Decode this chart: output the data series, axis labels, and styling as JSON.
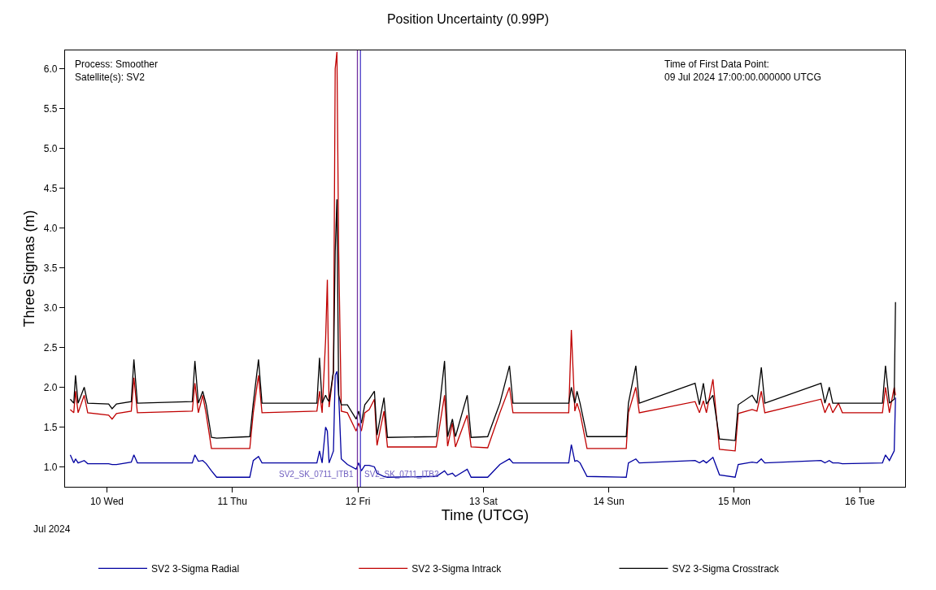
{
  "chart_data": {
    "type": "line",
    "title": "Position Uncertainty (0.99P)",
    "xlabel": "Time (UTCG)",
    "ylabel": "Three Sigmas (m)",
    "annotations": [
      "Process: Smoother",
      "Satellite(s): SV2",
      "Time of First Data Point:",
      "09 Jul 2024 17:00:00.000000 UTCG",
      "Jul 2024"
    ],
    "x": [
      "2024-07-09T17:00",
      "2024-07-09T17:40",
      "2024-07-09T18:00",
      "2024-07-09T18:30",
      "2024-07-09T19:40",
      "2024-07-09T20:20",
      "2024-07-10T00:20",
      "2024-07-10T01:00",
      "2024-07-10T01:50",
      "2024-07-10T04:40",
      "2024-07-10T05:10",
      "2024-07-10T05:50",
      "2024-07-10T16:20",
      "2024-07-10T16:50",
      "2024-07-10T17:30",
      "2024-07-10T18:20",
      "2024-07-10T19:00",
      "2024-07-10T20:00",
      "2024-07-10T21:00",
      "2024-07-11T03:20",
      "2024-07-11T04:00",
      "2024-07-11T05:00",
      "2024-07-11T05:40",
      "2024-07-11T16:10",
      "2024-07-11T16:40",
      "2024-07-11T17:10",
      "2024-07-11T17:50",
      "2024-07-11T18:10",
      "2024-07-11T18:30",
      "2024-07-11T19:20",
      "2024-07-11T19:40",
      "2024-07-11T20:00",
      "2024-07-11T20:20",
      "2024-07-11T20:50",
      "2024-07-11T22:00",
      "2024-07-11T23:40",
      "2024-07-12T00:10",
      "2024-07-12T00:40",
      "2024-07-12T01:20",
      "2024-07-12T02:10",
      "2024-07-12T03:10",
      "2024-07-12T03:40",
      "2024-07-12T05:00",
      "2024-07-12T05:40",
      "2024-07-12T15:00",
      "2024-07-12T16:35",
      "2024-07-12T17:10",
      "2024-07-12T18:05",
      "2024-07-12T18:40",
      "2024-07-12T20:55",
      "2024-07-12T21:40",
      "2024-07-13T00:50",
      "2024-07-13T03:10",
      "2024-07-13T05:00",
      "2024-07-13T05:40",
      "2024-07-13T16:20",
      "2024-07-13T16:50",
      "2024-07-13T17:30",
      "2024-07-13T17:55",
      "2024-07-13T18:30",
      "2024-07-13T19:50",
      "2024-07-14T03:20",
      "2024-07-14T03:45",
      "2024-07-14T05:10",
      "2024-07-14T05:50",
      "2024-07-14T16:30",
      "2024-07-14T17:20",
      "2024-07-14T18:05",
      "2024-07-14T18:40",
      "2024-07-14T19:55",
      "2024-07-14T21:10",
      "2024-07-15T00:10",
      "2024-07-15T00:45",
      "2024-07-15T03:25",
      "2024-07-15T04:20",
      "2024-07-15T05:10",
      "2024-07-15T05:50",
      "2024-07-15T16:35",
      "2024-07-15T17:20",
      "2024-07-15T18:10",
      "2024-07-15T18:50",
      "2024-07-15T19:55",
      "2024-07-15T20:40",
      "2024-07-16T04:20",
      "2024-07-16T04:55",
      "2024-07-16T05:40",
      "2024-07-16T06:35",
      "2024-07-16T06:50"
    ],
    "series": [
      {
        "name": "SV2 3-Sigma Radial",
        "color": "#0000a0",
        "values": [
          1.15,
          1.05,
          1.1,
          1.05,
          1.08,
          1.04,
          1.04,
          1.03,
          1.03,
          1.06,
          1.15,
          1.05,
          1.05,
          1.15,
          1.07,
          1.08,
          1.04,
          0.95,
          0.87,
          0.87,
          1.08,
          1.13,
          1.05,
          1.05,
          1.2,
          1.05,
          1.5,
          1.45,
          1.05,
          1.2,
          2.15,
          2.2,
          1.9,
          1.1,
          1.03,
          0.97,
          1.05,
          0.95,
          1.02,
          1.02,
          1.0,
          0.92,
          0.88,
          0.87,
          0.88,
          0.95,
          0.9,
          0.92,
          0.88,
          0.97,
          0.87,
          0.87,
          1.03,
          1.1,
          1.05,
          1.05,
          1.28,
          1.07,
          1.08,
          1.05,
          0.88,
          0.87,
          1.05,
          1.1,
          1.05,
          1.08,
          1.05,
          1.08,
          1.05,
          1.12,
          0.9,
          0.87,
          1.03,
          1.06,
          1.05,
          1.1,
          1.05,
          1.08,
          1.05,
          1.08,
          1.05,
          1.05,
          1.04,
          1.05,
          1.15,
          1.08,
          1.2,
          1.87
        ]
      },
      {
        "name": "SV2 3-Sigma Intrack",
        "color": "#c00000",
        "values": [
          1.72,
          1.68,
          1.95,
          1.68,
          1.9,
          1.68,
          1.65,
          1.6,
          1.67,
          1.7,
          2.12,
          1.68,
          1.7,
          2.05,
          1.68,
          1.9,
          1.66,
          1.23,
          1.23,
          1.23,
          1.68,
          2.15,
          1.68,
          1.7,
          1.95,
          1.68,
          2.6,
          3.35,
          1.75,
          2.2,
          6.0,
          6.21,
          3.7,
          1.7,
          1.68,
          1.45,
          1.55,
          1.45,
          1.68,
          1.72,
          1.85,
          1.27,
          1.7,
          1.25,
          1.25,
          1.9,
          1.26,
          1.55,
          1.25,
          1.65,
          1.25,
          1.24,
          1.68,
          2.0,
          1.68,
          1.68,
          2.72,
          1.7,
          1.8,
          1.68,
          1.23,
          1.23,
          1.68,
          2.0,
          1.68,
          1.82,
          1.68,
          1.83,
          1.68,
          2.1,
          1.22,
          1.2,
          1.67,
          1.72,
          1.7,
          1.95,
          1.68,
          1.85,
          1.68,
          1.8,
          1.68,
          1.8,
          1.68,
          1.68,
          2.0,
          1.68,
          2.0,
          1.9
        ]
      },
      {
        "name": "SV2 3-Sigma Crosstrack",
        "color": "#000000",
        "values": [
          1.85,
          1.8,
          2.15,
          1.8,
          2.0,
          1.8,
          1.79,
          1.73,
          1.79,
          1.82,
          2.35,
          1.8,
          1.82,
          2.33,
          1.8,
          1.95,
          1.78,
          1.37,
          1.36,
          1.38,
          1.8,
          2.35,
          1.8,
          1.8,
          2.37,
          1.8,
          1.9,
          1.85,
          1.82,
          2.2,
          3.7,
          4.36,
          1.9,
          1.78,
          1.78,
          1.6,
          1.7,
          1.55,
          1.78,
          1.85,
          1.95,
          1.4,
          1.87,
          1.37,
          1.38,
          2.33,
          1.38,
          1.6,
          1.38,
          1.9,
          1.37,
          1.38,
          1.8,
          2.27,
          1.8,
          1.8,
          2.0,
          1.8,
          1.95,
          1.8,
          1.38,
          1.38,
          1.8,
          2.27,
          1.8,
          2.05,
          1.78,
          2.05,
          1.79,
          1.9,
          1.35,
          1.33,
          1.78,
          1.9,
          1.8,
          2.25,
          1.8,
          2.05,
          1.8,
          2.0,
          1.8,
          1.8,
          1.8,
          1.8,
          2.27,
          1.8,
          1.85,
          3.07
        ]
      }
    ],
    "xlim": [
      "2024-07-09T16:00",
      "2024-07-16T08:40"
    ],
    "xticks": [
      {
        "value": "2024-07-10",
        "label": "10 Wed"
      },
      {
        "value": "2024-07-11",
        "label": "11 Thu"
      },
      {
        "value": "2024-07-12",
        "label": "12 Fri"
      },
      {
        "value": "2024-07-13",
        "label": "13 Sat"
      },
      {
        "value": "2024-07-14",
        "label": "14 Sun"
      },
      {
        "value": "2024-07-15",
        "label": "15 Mon"
      },
      {
        "value": "2024-07-16",
        "label": "16 Tue"
      }
    ],
    "ylim": [
      0.75,
      6.23
    ],
    "yticks": [
      {
        "value": 1,
        "label": "1.0"
      },
      {
        "value": 1.5,
        "label": "1.5"
      },
      {
        "value": 2,
        "label": "2.0"
      },
      {
        "value": 2.5,
        "label": "2.5"
      },
      {
        "value": 3,
        "label": "3.0"
      },
      {
        "value": 3.5,
        "label": "3.5"
      },
      {
        "value": 4,
        "label": "4.0"
      },
      {
        "value": 4.5,
        "label": "4.5"
      },
      {
        "value": 5,
        "label": "5.0"
      },
      {
        "value": 5.5,
        "label": "5.5"
      },
      {
        "value": 6,
        "label": "6.0"
      }
    ],
    "ref_lines": [
      {
        "axis": "x",
        "value": "2024-07-11T23:55",
        "label": "SV2_SK_0711_ITB1",
        "color": "#7030a0"
      },
      {
        "axis": "x",
        "value": "2024-07-12T00:30",
        "label": "SV2_SK_0711_ITB2",
        "color": "#4b3cc8"
      }
    ],
    "grid": false,
    "legend": "bottom",
    "marker": "none",
    "line_style": "solid"
  }
}
